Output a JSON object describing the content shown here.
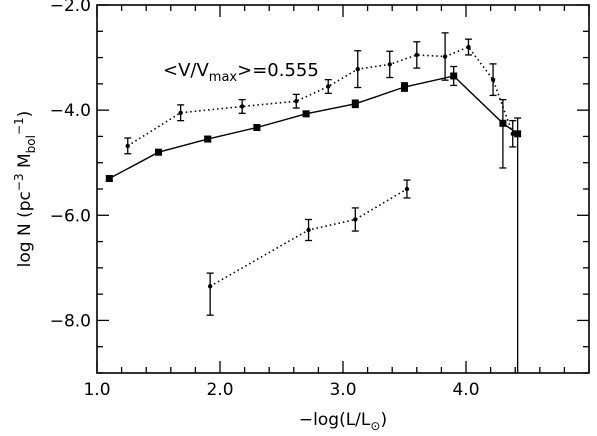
{
  "chart_data": {
    "type": "line",
    "title": "",
    "annotation": {
      "prefix": "<V/V",
      "sub": "max",
      "suffix": ">=0.555"
    },
    "xlabel": {
      "main": "−log(L/L",
      "sub": "⊙",
      "close": ")"
    },
    "ylabel": {
      "main": "log N  (pc",
      "sup": "−3",
      "mid": " M",
      "sub": "bol",
      "sup2": "−1",
      "close": ")"
    },
    "xlim": [
      1.0,
      5.0
    ],
    "ylim": [
      -9.0,
      -2.0
    ],
    "x_ticks": [
      1.0,
      2.0,
      3.0,
      4.0
    ],
    "x_tick_labels": [
      "1.0",
      "2.0",
      "3.0",
      "4.0"
    ],
    "y_ticks": [
      -2.0,
      -4.0,
      -6.0,
      -8.0
    ],
    "y_tick_labels": [
      "−2.0",
      "−4.0",
      "−6.0",
      "−8.0"
    ],
    "grid": false,
    "series": [
      {
        "style": "solid",
        "marker": "square",
        "points": [
          {
            "x": 1.1,
            "y": -5.3,
            "err_lo": 0.05,
            "err_hi": 0.05
          },
          {
            "x": 1.5,
            "y": -4.8,
            "err_lo": 0.05,
            "err_hi": 0.05
          },
          {
            "x": 1.9,
            "y": -4.55,
            "err_lo": 0.05,
            "err_hi": 0.05
          },
          {
            "x": 2.3,
            "y": -4.33,
            "err_lo": 0.05,
            "err_hi": 0.05
          },
          {
            "x": 2.7,
            "y": -4.07,
            "err_lo": 0.05,
            "err_hi": 0.05
          },
          {
            "x": 3.1,
            "y": -3.88,
            "err_lo": 0.07,
            "err_hi": 0.07
          },
          {
            "x": 3.5,
            "y": -3.56,
            "err_lo": 0.08,
            "err_hi": 0.08
          },
          {
            "x": 3.9,
            "y": -3.35,
            "err_lo": 0.18,
            "err_hi": 0.18
          },
          {
            "x": 4.3,
            "y": -4.25,
            "err_lo": 0.85,
            "err_hi": 0.45
          },
          {
            "x": 4.42,
            "y": -4.45,
            "err_lo": 4.6,
            "err_hi": 0.3
          }
        ]
      },
      {
        "style": "dotted",
        "marker": "dot",
        "points": [
          {
            "x": 1.25,
            "y": -4.68,
            "err_lo": 0.15,
            "err_hi": 0.15
          },
          {
            "x": 1.68,
            "y": -4.05,
            "err_lo": 0.15,
            "err_hi": 0.15
          },
          {
            "x": 2.18,
            "y": -3.93,
            "err_lo": 0.13,
            "err_hi": 0.13
          },
          {
            "x": 2.62,
            "y": -3.83,
            "err_lo": 0.13,
            "err_hi": 0.13
          },
          {
            "x": 2.88,
            "y": -3.55,
            "err_lo": 0.13,
            "err_hi": 0.13
          },
          {
            "x": 3.12,
            "y": -3.22,
            "err_lo": 0.35,
            "err_hi": 0.35
          },
          {
            "x": 3.38,
            "y": -3.13,
            "err_lo": 0.25,
            "err_hi": 0.25
          },
          {
            "x": 3.6,
            "y": -2.95,
            "err_lo": 0.25,
            "err_hi": 0.25
          },
          {
            "x": 3.83,
            "y": -2.98,
            "err_lo": 0.45,
            "err_hi": 0.45
          },
          {
            "x": 4.02,
            "y": -2.8,
            "err_lo": 0.15,
            "err_hi": 0.15
          },
          {
            "x": 4.22,
            "y": -3.42,
            "err_lo": 0.3,
            "err_hi": 0.3
          },
          {
            "x": 4.38,
            "y": -4.45,
            "err_lo": 0.25,
            "err_hi": 0.25
          }
        ]
      },
      {
        "style": "dotted",
        "marker": "dot",
        "points": [
          {
            "x": 1.92,
            "y": -7.35,
            "err_lo": 0.55,
            "err_hi": 0.25
          },
          {
            "x": 2.72,
            "y": -6.28,
            "err_lo": 0.2,
            "err_hi": 0.2
          },
          {
            "x": 3.1,
            "y": -6.08,
            "err_lo": 0.22,
            "err_hi": 0.22
          },
          {
            "x": 3.52,
            "y": -5.5,
            "err_lo": 0.17,
            "err_hi": 0.17
          }
        ]
      }
    ]
  }
}
